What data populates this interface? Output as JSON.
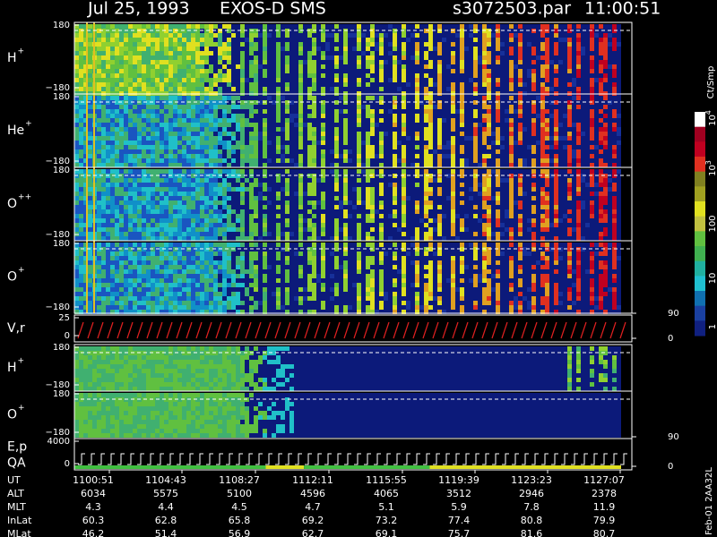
{
  "header": {
    "date": "Jul 25, 1993",
    "instrument": "EXOS-D SMS",
    "file": "s3072503.par",
    "time": "11:00:51"
  },
  "panels": [
    {
      "label": "H",
      "sup": "+",
      "ticks": [
        "180",
        "−180"
      ]
    },
    {
      "label": "He",
      "sup": "+",
      "ticks": [
        "180",
        "−180"
      ]
    },
    {
      "label": "O",
      "sup": "++",
      "ticks": [
        "180",
        "−180"
      ]
    },
    {
      "label": "O",
      "sup": "+",
      "ticks": [
        "180",
        "−180"
      ]
    },
    {
      "label": "V,r",
      "ticks": [
        "25",
        "0"
      ],
      "right_ticks": [
        "90",
        "0"
      ]
    },
    {
      "label": "H",
      "sup": "+",
      "ticks": [
        "180",
        "−180"
      ]
    },
    {
      "label": "O",
      "sup": "+",
      "ticks": [
        "180",
        "−180"
      ]
    },
    {
      "label": "E,p",
      "label2": "QA",
      "ticks": [
        "4000",
        "0"
      ],
      "right_ticks": [
        "90",
        "0"
      ]
    }
  ],
  "colorbar": {
    "title": "Ct/Smp",
    "labels": [
      {
        "base": "10",
        "exp": "4"
      },
      {
        "base": "10",
        "exp": "3"
      },
      {
        "base": "100"
      },
      {
        "base": "10"
      },
      {
        "base": "1"
      }
    ]
  },
  "footer": {
    "rows": [
      [
        "UT",
        "1100:51",
        "1104:43",
        "1108:27",
        "1112:11",
        "1115:55",
        "1119:39",
        "1123:23",
        "1127:07"
      ],
      [
        "ALT",
        "6034",
        "5575",
        "5100",
        "4596",
        "4065",
        "3512",
        "2946",
        "2378"
      ],
      [
        "MLT",
        "4.3",
        "4.4",
        "4.5",
        "4.7",
        "5.1",
        "5.9",
        "7.8",
        "11.9"
      ],
      [
        "InLat",
        "60.3",
        "62.8",
        "65.8",
        "69.2",
        "73.2",
        "77.4",
        "80.8",
        "79.9"
      ],
      [
        "MLat",
        "46.2",
        "51.4",
        "56.9",
        "62.7",
        "69.1",
        "75.7",
        "81.6",
        "80.7"
      ]
    ]
  },
  "stamp": "Feb-01 2AA32L"
}
